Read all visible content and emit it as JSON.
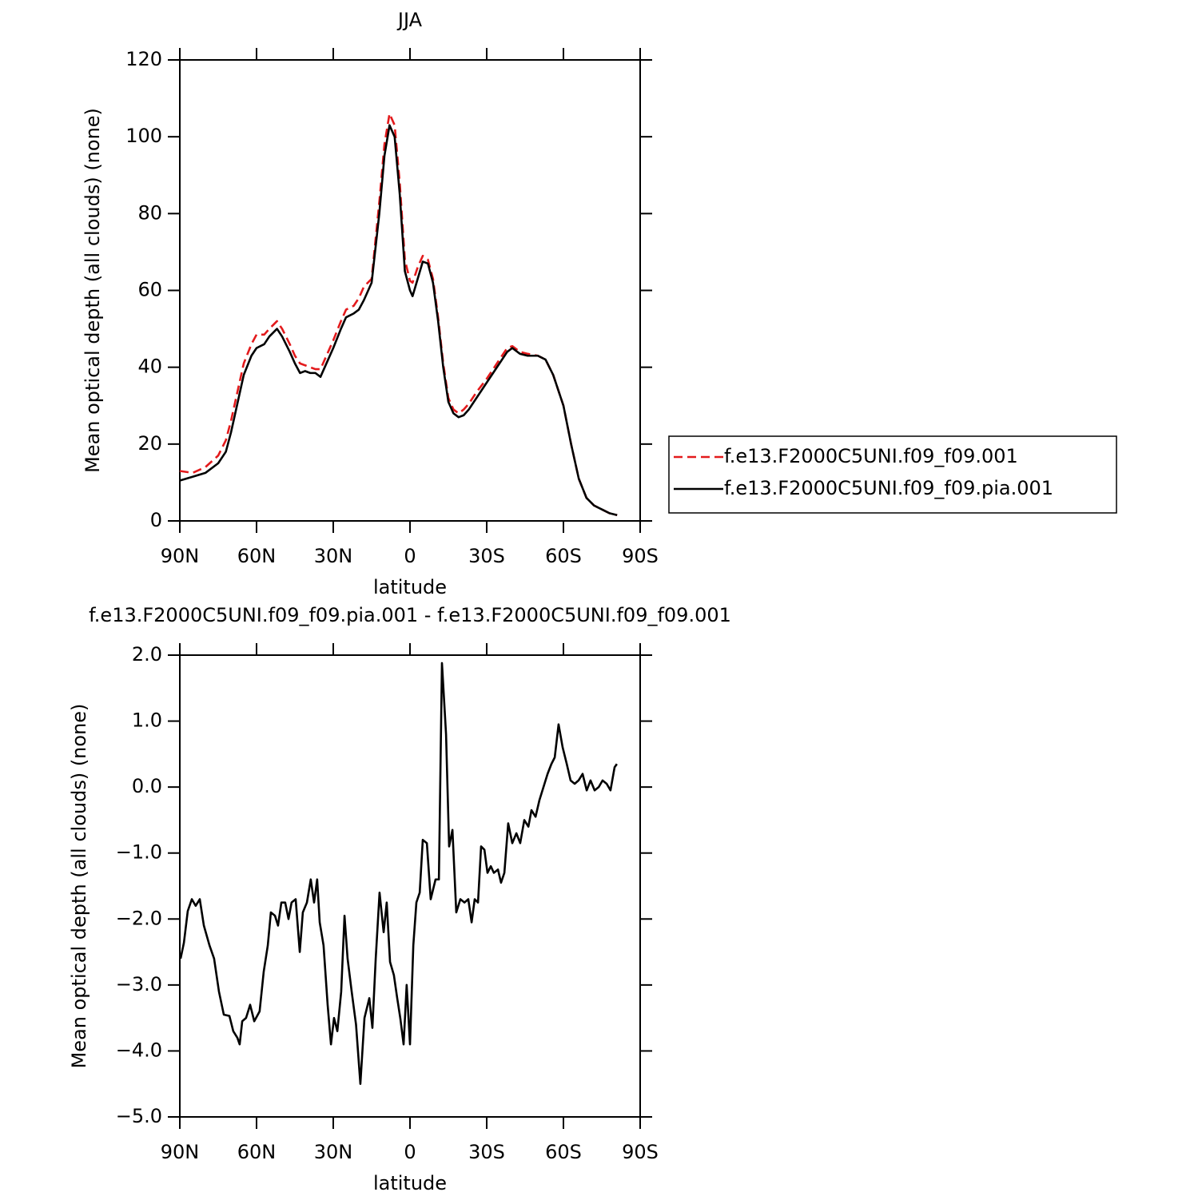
{
  "chart_data": [
    {
      "type": "line",
      "title": "JJA",
      "xlabel": "latitude",
      "ylabel": "Mean optical depth (all clouds) (none)",
      "xlim": [
        90,
        -90
      ],
      "xticks": [
        {
          "value": 90,
          "label": "90N"
        },
        {
          "value": 60,
          "label": "60N"
        },
        {
          "value": 30,
          "label": "30N"
        },
        0,
        {
          "value": -30,
          "label": "30S"
        },
        {
          "value": -60,
          "label": "60S"
        },
        {
          "value": -90,
          "label": "90S"
        }
      ],
      "ylim": [
        0,
        120
      ],
      "yticks": [
        0,
        20,
        40,
        60,
        80,
        100,
        120
      ],
      "legend": "right",
      "x": [
        90,
        85,
        80,
        75,
        72,
        70,
        67,
        65,
        62,
        60,
        57,
        55,
        52,
        50,
        47,
        45,
        43,
        41,
        39,
        37,
        35,
        32,
        30,
        27,
        25,
        22,
        20,
        18,
        15,
        12,
        10,
        8,
        6,
        4,
        2,
        0,
        -1,
        -3,
        -5,
        -7,
        -9,
        -11,
        -13,
        -15,
        -17,
        -19,
        -21,
        -23,
        -26,
        -30,
        -35,
        -38,
        -40,
        -43,
        -46,
        -50,
        -53,
        -56,
        -60,
        -63,
        -66,
        -69,
        -72,
        -75,
        -78,
        -81
      ],
      "series": [
        {
          "name": "f.e13.F2000C5UNI.f09_f09.001",
          "color": "#e31a1c",
          "dashed": true,
          "values": [
            13,
            12.5,
            14,
            17,
            21,
            26,
            35,
            41,
            46,
            48.5,
            48.5,
            50,
            52,
            50,
            46,
            43,
            41,
            40.5,
            40,
            39.5,
            39.5,
            44,
            47,
            52,
            55,
            56,
            58,
            61,
            63,
            83,
            98,
            106,
            103,
            88,
            68,
            62.5,
            62,
            66,
            69,
            68,
            63,
            53,
            41,
            32,
            29,
            28,
            29,
            30.5,
            33.5,
            37,
            42,
            45,
            45.5,
            44,
            43.5,
            43,
            42,
            38,
            30,
            20,
            11,
            6,
            4,
            3,
            2,
            1.5
          ]
        },
        {
          "name": "f.e13.F2000C5UNI.f09_f09.pia.001",
          "color": "#000000",
          "dashed": false,
          "values": [
            10.5,
            11.5,
            12.5,
            15,
            18,
            23,
            32,
            38,
            43,
            45,
            46,
            48,
            50,
            48,
            44,
            41,
            38.5,
            39,
            38.5,
            38.5,
            37.5,
            42,
            45,
            50,
            53,
            54,
            55,
            57.5,
            62,
            80,
            95,
            103,
            100,
            85,
            65,
            60,
            58.5,
            63,
            67.5,
            67,
            62,
            52,
            40,
            31,
            28,
            27,
            27.5,
            29,
            32,
            36,
            41,
            44,
            45,
            43.5,
            43,
            43,
            42,
            38,
            30,
            20,
            11,
            6,
            4,
            3,
            2,
            1.5
          ]
        }
      ]
    },
    {
      "type": "line",
      "title": "f.e13.F2000C5UNI.f09_f09.pia.001 - f.e13.F2000C5UNI.f09_f09.001",
      "xlabel": "latitude",
      "ylabel": "Mean optical depth (all clouds) (none)",
      "xlim": [
        90,
        -90
      ],
      "xticks": [
        {
          "value": 90,
          "label": "90N"
        },
        {
          "value": 60,
          "label": "60N"
        },
        {
          "value": 30,
          "label": "30N"
        },
        0,
        {
          "value": -30,
          "label": "30S"
        },
        {
          "value": -60,
          "label": "60S"
        },
        {
          "value": -90,
          "label": "90S"
        }
      ],
      "ylim": [
        -5,
        2
      ],
      "yticks": [
        {
          "value": 2,
          "label": "2.0"
        },
        {
          "value": 1,
          "label": "1.0"
        },
        {
          "value": 0,
          "label": "0.0"
        },
        {
          "value": -1,
          "label": "−1.0"
        },
        {
          "value": -2,
          "label": "−2.0"
        },
        {
          "value": -3,
          "label": "−3.0"
        },
        {
          "value": -4,
          "label": "−4.0"
        },
        {
          "value": -5,
          "label": "−5.0"
        }
      ],
      "x": [
        89.7,
        88.4,
        86.9,
        85.3,
        83.8,
        82.2,
        80.6,
        78.4,
        76.6,
        74.7,
        72.8,
        70.6,
        69.1,
        67.5,
        66.6,
        65.6,
        64.1,
        62.5,
        60.9,
        58.8,
        57.2,
        55.6,
        54.4,
        52.8,
        51.6,
        50.3,
        48.8,
        47.5,
        46.3,
        44.7,
        43.1,
        41.9,
        40.3,
        38.8,
        37.5,
        36.3,
        35.3,
        33.8,
        32.2,
        30.9,
        29.7,
        28.4,
        26.9,
        25.6,
        24.4,
        22.8,
        21.1,
        19.4,
        17.8,
        15.9,
        14.7,
        13.4,
        11.9,
        10.3,
        9.1,
        7.8,
        6.3,
        5.0,
        3.8,
        2.5,
        1.3,
        0,
        -1.3,
        -2.5,
        -3.8,
        -5,
        -6.6,
        -8.1,
        -10,
        -11.3,
        -12.5,
        -14.1,
        -15.3,
        -16.6,
        -18.1,
        -19.7,
        -21.3,
        -22.8,
        -24.1,
        -25.3,
        -26.6,
        -27.8,
        -29.1,
        -30.3,
        -31.6,
        -32.8,
        -34.4,
        -35.6,
        -36.9,
        -38.4,
        -40,
        -41.6,
        -43.1,
        -44.7,
        -46.3,
        -47.5,
        -49.1,
        -50.6,
        -52.2,
        -53.8,
        -55.3,
        -56.6,
        -58.1,
        -59.7,
        -61.3,
        -62.8,
        -64.4,
        -65.9,
        -67.5,
        -69.1,
        -70.6,
        -72.2,
        -73.8,
        -75.3,
        -76.9,
        -78.4,
        -80,
        -80.9
      ],
      "series": [
        {
          "color": "#000000",
          "dashed": false,
          "values": [
            -2.6,
            -2.36,
            -1.88,
            -1.7,
            -1.8,
            -1.7,
            -2.1,
            -2.4,
            -2.6,
            -3.1,
            -3.45,
            -3.47,
            -3.7,
            -3.8,
            -3.9,
            -3.55,
            -3.5,
            -3.3,
            -3.55,
            -3.4,
            -2.8,
            -2.4,
            -1.9,
            -1.95,
            -2.1,
            -1.75,
            -1.75,
            -2.0,
            -1.75,
            -1.7,
            -2.5,
            -1.9,
            -1.75,
            -1.4,
            -1.75,
            -1.4,
            -2.05,
            -2.4,
            -3.3,
            -3.9,
            -3.5,
            -3.7,
            -3.1,
            -1.95,
            -2.6,
            -3.1,
            -3.6,
            -4.5,
            -3.5,
            -3.2,
            -3.65,
            -2.6,
            -1.6,
            -2.2,
            -1.75,
            -2.65,
            -2.85,
            -3.2,
            -3.5,
            -3.9,
            -3.0,
            -3.9,
            -2.4,
            -1.75,
            -1.6,
            -0.8,
            -0.85,
            -1.7,
            -1.4,
            -1.4,
            1.88,
            0.8,
            -0.9,
            -0.65,
            -1.9,
            -1.7,
            -1.75,
            -1.7,
            -2.05,
            -1.7,
            -1.75,
            -0.9,
            -0.95,
            -1.3,
            -1.2,
            -1.3,
            -1.25,
            -1.45,
            -1.3,
            -0.55,
            -0.85,
            -0.7,
            -0.85,
            -0.5,
            -0.6,
            -0.35,
            -0.45,
            -0.2,
            0.0,
            0.2,
            0.35,
            0.45,
            0.95,
            0.6,
            0.35,
            0.1,
            0.05,
            0.1,
            0.2,
            -0.05,
            0.1,
            -0.05,
            0.0,
            0.1,
            0.05,
            -0.05,
            0.3,
            0.35
          ]
        }
      ]
    }
  ]
}
